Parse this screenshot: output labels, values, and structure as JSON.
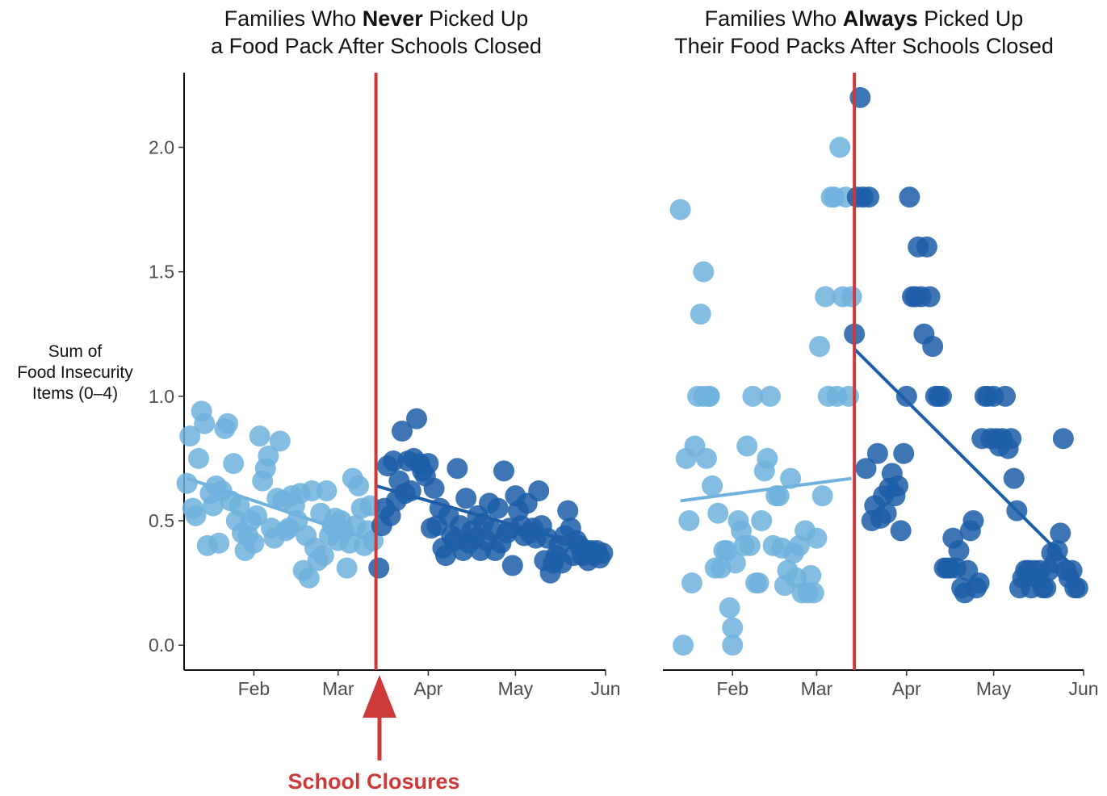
{
  "chart_data": [
    {
      "type": "scatter",
      "title_line1_pre": "Families Who ",
      "title_line1_bold": "Never",
      "title_line1_post": " Picked Up",
      "title_line2": "a Food Pack After Schools Closed",
      "ylabel_lines": [
        "Sum of",
        "Food Insecurity",
        "Items (0–4)"
      ],
      "xlabel": "",
      "x_ticks": [
        "Feb",
        "Mar",
        "Apr",
        "May",
        "Jun"
      ],
      "x_tick_dates": [
        "2020-02-01",
        "2020-03-01",
        "2020-04-01",
        "2020-05-01",
        "2020-06-01"
      ],
      "xlim": [
        "2020-01-08",
        "2020-06-01"
      ],
      "y_ticks": [
        "0.0",
        "0.5",
        "1.0",
        "1.5",
        "2.0"
      ],
      "ylim": [
        -0.1,
        2.3
      ],
      "grid": false,
      "legend": "none",
      "colors": {
        "before": "#6fb2dd",
        "after": "#1c5ea8",
        "closure": "#cc3a3a"
      },
      "closure_date": "2020-03-14",
      "series": [
        {
          "period": "before",
          "x": [
            "2020-01-09",
            "2020-01-10",
            "2020-01-11",
            "2020-01-12",
            "2020-01-13",
            "2020-01-14",
            "2020-01-15",
            "2020-01-16",
            "2020-01-17",
            "2020-01-18",
            "2020-01-19",
            "2020-01-20",
            "2020-01-21",
            "2020-01-22",
            "2020-01-23",
            "2020-01-24",
            "2020-01-25",
            "2020-01-26",
            "2020-01-27",
            "2020-01-28",
            "2020-01-29",
            "2020-01-30",
            "2020-01-31",
            "2020-02-01",
            "2020-02-02",
            "2020-02-03",
            "2020-02-04",
            "2020-02-05",
            "2020-02-06",
            "2020-02-07",
            "2020-02-08",
            "2020-02-09",
            "2020-02-10",
            "2020-02-11",
            "2020-02-12",
            "2020-02-13",
            "2020-02-14",
            "2020-02-15",
            "2020-02-16",
            "2020-02-17",
            "2020-02-18",
            "2020-02-19",
            "2020-02-20",
            "2020-02-21",
            "2020-02-22",
            "2020-02-23",
            "2020-02-24",
            "2020-02-25",
            "2020-02-26",
            "2020-02-27",
            "2020-02-28",
            "2020-02-29",
            "2020-03-01",
            "2020-03-02",
            "2020-03-03",
            "2020-03-04",
            "2020-03-05",
            "2020-03-06",
            "2020-03-07",
            "2020-03-08",
            "2020-03-09",
            "2020-03-10",
            "2020-03-11",
            "2020-03-12",
            "2020-03-13"
          ],
          "y": [
            0.65,
            0.84,
            0.55,
            0.52,
            0.75,
            0.94,
            0.89,
            0.4,
            0.61,
            0.56,
            0.64,
            0.41,
            0.62,
            0.87,
            0.89,
            0.58,
            0.73,
            0.5,
            0.56,
            0.45,
            0.38,
            0.44,
            0.5,
            0.41,
            0.52,
            0.84,
            0.66,
            0.71,
            0.76,
            0.47,
            0.43,
            0.59,
            0.82,
            0.58,
            0.46,
            0.47,
            0.6,
            0.56,
            0.5,
            0.61,
            0.3,
            0.44,
            0.27,
            0.62,
            0.39,
            0.34,
            0.53,
            0.36,
            0.62,
            0.44,
            0.48,
            0.51,
            0.42,
            0.5,
            0.46,
            0.31,
            0.41,
            0.67,
            0.48,
            0.64,
            0.55,
            0.4,
            0.46,
            0.56,
            0.42
          ],
          "trend": [
            [
              "2020-01-09",
              0.67
            ],
            [
              "2020-03-13",
              0.42
            ]
          ]
        },
        {
          "period": "after",
          "x": [
            "2020-03-15",
            "2020-03-16",
            "2020-03-17",
            "2020-03-18",
            "2020-03-19",
            "2020-03-20",
            "2020-03-21",
            "2020-03-22",
            "2020-03-23",
            "2020-03-24",
            "2020-03-25",
            "2020-03-26",
            "2020-03-27",
            "2020-03-28",
            "2020-03-29",
            "2020-03-30",
            "2020-03-31",
            "2020-04-01",
            "2020-04-02",
            "2020-04-03",
            "2020-04-04",
            "2020-04-05",
            "2020-04-06",
            "2020-04-07",
            "2020-04-08",
            "2020-04-09",
            "2020-04-10",
            "2020-04-11",
            "2020-04-12",
            "2020-04-13",
            "2020-04-14",
            "2020-04-15",
            "2020-04-16",
            "2020-04-17",
            "2020-04-18",
            "2020-04-19",
            "2020-04-20",
            "2020-04-21",
            "2020-04-22",
            "2020-04-23",
            "2020-04-24",
            "2020-04-25",
            "2020-04-26",
            "2020-04-27",
            "2020-04-28",
            "2020-04-29",
            "2020-04-30",
            "2020-05-01",
            "2020-05-02",
            "2020-05-03",
            "2020-05-04",
            "2020-05-05",
            "2020-05-06",
            "2020-05-07",
            "2020-05-08",
            "2020-05-09",
            "2020-05-10",
            "2020-05-11",
            "2020-05-12",
            "2020-05-13",
            "2020-05-14",
            "2020-05-15",
            "2020-05-16",
            "2020-05-17",
            "2020-05-18",
            "2020-05-19",
            "2020-05-20",
            "2020-05-21",
            "2020-05-22",
            "2020-05-23",
            "2020-05-24",
            "2020-05-25",
            "2020-05-26",
            "2020-05-27",
            "2020-05-28",
            "2020-05-29",
            "2020-05-30",
            "2020-05-31"
          ],
          "y": [
            0.31,
            0.48,
            0.55,
            0.72,
            0.52,
            0.74,
            0.58,
            0.66,
            0.86,
            0.61,
            0.74,
            0.62,
            0.75,
            0.91,
            0.73,
            0.7,
            0.68,
            0.73,
            0.47,
            0.63,
            0.48,
            0.55,
            0.39,
            0.36,
            0.52,
            0.44,
            0.42,
            0.71,
            0.48,
            0.38,
            0.59,
            0.41,
            0.46,
            0.43,
            0.52,
            0.38,
            0.49,
            0.42,
            0.57,
            0.46,
            0.38,
            0.55,
            0.41,
            0.7,
            0.45,
            0.47,
            0.32,
            0.6,
            0.54,
            0.48,
            0.44,
            0.57,
            0.45,
            0.47,
            0.43,
            0.62,
            0.48,
            0.34,
            0.43,
            0.29,
            0.33,
            0.36,
            0.4,
            0.33,
            0.44,
            0.54,
            0.47,
            0.36,
            0.42,
            0.4,
            0.36,
            0.38,
            0.34,
            0.38,
            0.36,
            0.38,
            0.35,
            0.37
          ],
          "trend": [
            [
              "2020-03-14",
              0.64
            ],
            [
              "2020-04-01",
              0.58
            ],
            [
              "2020-05-31",
              0.38
            ]
          ]
        }
      ],
      "annotation": {
        "text": "School Closures"
      }
    },
    {
      "type": "scatter",
      "title_line1_pre": "Families Who ",
      "title_line1_bold": "Always",
      "title_line1_post": " Picked Up",
      "title_line2": "Their Food Packs After Schools Closed",
      "xlabel": "",
      "x_ticks": [
        "Feb",
        "Mar",
        "Apr",
        "May",
        "Jun"
      ],
      "x_tick_dates": [
        "2020-02-01",
        "2020-03-01",
        "2020-04-01",
        "2020-05-01",
        "2020-06-01"
      ],
      "xlim": [
        "2020-01-08",
        "2020-06-01"
      ],
      "ylim": [
        -0.1,
        2.3
      ],
      "grid": false,
      "legend": "none",
      "colors": {
        "before": "#6fb2dd",
        "after": "#1c5ea8",
        "closure": "#cc3a3a"
      },
      "closure_date": "2020-03-14",
      "series": [
        {
          "period": "before",
          "x": [
            "2020-01-14",
            "2020-01-15",
            "2020-01-16",
            "2020-01-17",
            "2020-01-18",
            "2020-01-19",
            "2020-01-20",
            "2020-01-21",
            "2020-01-22",
            "2020-01-22",
            "2020-01-23",
            "2020-01-24",
            "2020-01-24",
            "2020-01-25",
            "2020-01-26",
            "2020-01-27",
            "2020-01-28",
            "2020-01-29",
            "2020-01-30",
            "2020-01-31",
            "2020-02-01",
            "2020-02-01",
            "2020-02-02",
            "2020-02-03",
            "2020-02-04",
            "2020-02-05",
            "2020-02-06",
            "2020-02-07",
            "2020-02-08",
            "2020-02-09",
            "2020-02-10",
            "2020-02-11",
            "2020-02-12",
            "2020-02-13",
            "2020-02-14",
            "2020-02-15",
            "2020-02-16",
            "2020-02-17",
            "2020-02-18",
            "2020-02-19",
            "2020-02-20",
            "2020-02-21",
            "2020-02-22",
            "2020-02-23",
            "2020-02-24",
            "2020-02-25",
            "2020-02-26",
            "2020-02-27",
            "2020-02-28",
            "2020-02-29",
            "2020-03-01",
            "2020-03-02",
            "2020-03-03",
            "2020-03-04",
            "2020-03-05",
            "2020-03-06",
            "2020-03-07",
            "2020-03-08",
            "2020-03-09",
            "2020-03-10",
            "2020-03-11",
            "2020-03-12",
            "2020-03-13"
          ],
          "y": [
            1.75,
            0.0,
            0.75,
            0.5,
            0.25,
            0.8,
            1.0,
            1.33,
            1.5,
            1.0,
            0.75,
            1.0,
            1.0,
            0.64,
            0.31,
            0.53,
            0.31,
            0.38,
            0.38,
            0.15,
            0.07,
            0.0,
            0.33,
            0.5,
            0.46,
            0.4,
            0.8,
            0.4,
            1.0,
            0.25,
            0.25,
            0.5,
            0.7,
            0.75,
            1.0,
            0.4,
            0.6,
            0.6,
            0.39,
            0.24,
            0.3,
            0.67,
            0.37,
            0.27,
            0.4,
            0.21,
            0.46,
            0.21,
            0.28,
            0.21,
            0.43,
            1.2,
            0.6,
            1.4,
            1.0,
            1.8,
            1.8,
            1.0,
            2.0,
            1.4,
            1.8,
            1.0,
            1.4
          ],
          "trend": [
            [
              "2020-01-14",
              0.58
            ],
            [
              "2020-03-13",
              0.67
            ]
          ]
        },
        {
          "period": "after",
          "x": [
            "2020-03-14",
            "2020-03-15",
            "2020-03-16",
            "2020-03-17",
            "2020-03-18",
            "2020-03-19",
            "2020-03-20",
            "2020-03-21",
            "2020-03-22",
            "2020-03-23",
            "2020-03-24",
            "2020-03-25",
            "2020-03-26",
            "2020-03-27",
            "2020-03-28",
            "2020-03-29",
            "2020-03-30",
            "2020-03-31",
            "2020-04-01",
            "2020-04-02",
            "2020-04-03",
            "2020-04-04",
            "2020-04-05",
            "2020-04-06",
            "2020-04-07",
            "2020-04-08",
            "2020-04-09",
            "2020-04-10",
            "2020-04-11",
            "2020-04-12",
            "2020-04-13",
            "2020-04-14",
            "2020-04-15",
            "2020-04-16",
            "2020-04-17",
            "2020-04-18",
            "2020-04-19",
            "2020-04-20",
            "2020-04-21",
            "2020-04-22",
            "2020-04-23",
            "2020-04-24",
            "2020-04-25",
            "2020-04-26",
            "2020-04-27",
            "2020-04-28",
            "2020-04-29",
            "2020-04-30",
            "2020-05-01",
            "2020-05-02",
            "2020-05-03",
            "2020-05-04",
            "2020-05-05",
            "2020-05-06",
            "2020-05-07",
            "2020-05-08",
            "2020-05-09",
            "2020-05-10",
            "2020-05-11",
            "2020-05-12",
            "2020-05-13",
            "2020-05-14",
            "2020-05-15",
            "2020-05-16",
            "2020-05-17",
            "2020-05-18",
            "2020-05-19",
            "2020-05-20",
            "2020-05-21",
            "2020-05-22",
            "2020-05-23",
            "2020-05-24",
            "2020-05-25",
            "2020-05-26",
            "2020-05-27",
            "2020-05-28",
            "2020-05-29",
            "2020-05-30"
          ],
          "y": [
            1.25,
            1.8,
            2.2,
            1.8,
            0.71,
            1.8,
            0.5,
            0.56,
            0.77,
            0.51,
            0.6,
            0.53,
            0.63,
            0.69,
            0.6,
            0.64,
            0.46,
            0.77,
            1.0,
            1.8,
            1.4,
            1.4,
            1.6,
            1.4,
            1.25,
            1.6,
            1.4,
            1.2,
            1.0,
            1.0,
            1.0,
            0.31,
            0.31,
            0.31,
            0.43,
            0.31,
            0.38,
            0.23,
            0.21,
            0.3,
            0.46,
            0.5,
            0.23,
            0.25,
            0.83,
            1.0,
            1.0,
            0.83,
            1.0,
            0.83,
            0.8,
            0.83,
            1.0,
            0.79,
            0.83,
            0.67,
            0.54,
            0.23,
            0.27,
            0.3,
            0.3,
            0.23,
            0.3,
            0.27,
            0.3,
            0.23,
            0.23,
            0.3,
            0.37,
            0.33,
            0.38,
            0.45,
            0.83,
            0.3,
            0.27,
            0.3,
            0.23,
            0.23
          ],
          "trend": [
            [
              "2020-03-14",
              1.19
            ],
            [
              "2020-05-28",
              0.32
            ]
          ]
        }
      ]
    }
  ]
}
